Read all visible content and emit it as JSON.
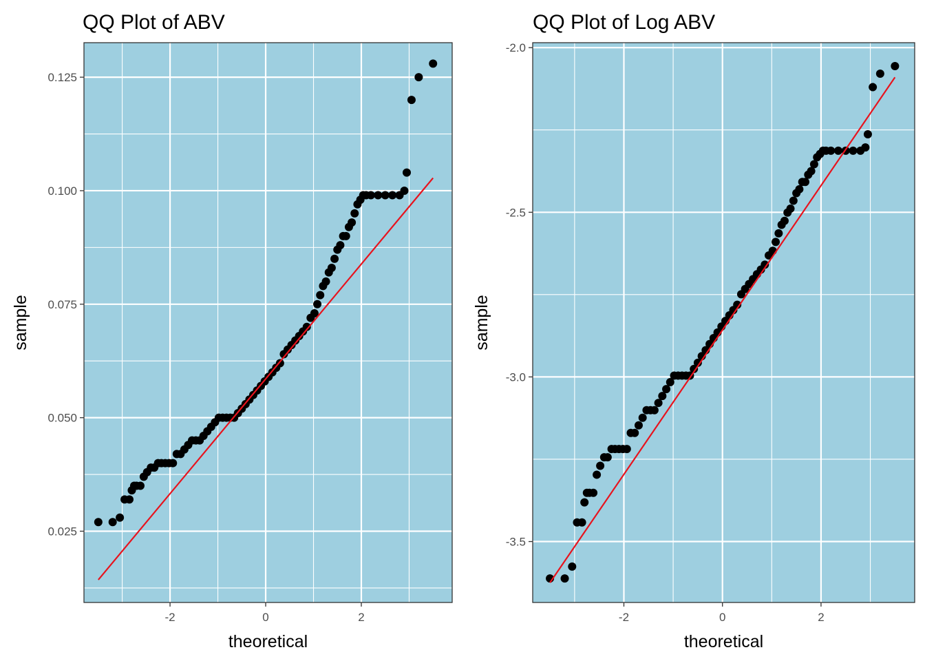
{
  "chart_data": [
    {
      "type": "scatter",
      "title": "QQ Plot of ABV",
      "xlabel": "theoretical",
      "ylabel": "sample",
      "xlim": [
        -3.8,
        3.9
      ],
      "ylim": [
        0.0093,
        0.1326
      ],
      "xticks": [
        -2,
        0,
        2
      ],
      "xtick_labels": [
        "-2",
        "0",
        "2"
      ],
      "yticks": [
        0.025,
        0.05,
        0.075,
        0.1,
        0.125
      ],
      "ytick_labels": [
        "0.025",
        "0.050",
        "0.075",
        "0.100",
        "0.125"
      ],
      "yminor": [
        0.0125,
        0.0375,
        0.0625,
        0.0875,
        0.1125
      ],
      "xminor": [
        -3,
        -1,
        1,
        3
      ],
      "grid": true,
      "background": "#9ECFE0",
      "point_color": "#000000",
      "line_color": "#E8131D",
      "series": [
        {
          "kind": "points",
          "x": [
            -3.5,
            -3.2,
            -3.05,
            -2.95,
            -2.85,
            -2.8,
            -2.75,
            -2.7,
            -2.62,
            -2.55,
            -2.48,
            -2.4,
            -2.33,
            -2.25,
            -2.18,
            -2.1,
            -2.02,
            -1.94,
            -1.86,
            -1.78,
            -1.7,
            -1.62,
            -1.54,
            -1.46,
            -1.38,
            -1.3,
            -1.22,
            -1.14,
            -1.06,
            -0.98,
            -0.9,
            -0.82,
            -0.74,
            -0.66,
            -0.58,
            -0.5,
            -0.42,
            -0.34,
            -0.26,
            -0.18,
            -0.1,
            -0.02,
            0.06,
            0.14,
            0.22,
            0.3,
            0.38,
            0.46,
            0.54,
            0.62,
            0.7,
            0.78,
            0.86,
            0.94,
            1.02,
            1.08,
            1.14,
            1.2,
            1.26,
            1.32,
            1.38,
            1.44,
            1.5,
            1.56,
            1.62,
            1.68,
            1.74,
            1.8,
            1.86,
            1.92,
            1.98,
            2.04,
            2.1,
            2.2,
            2.35,
            2.5,
            2.65,
            2.8,
            2.9,
            2.95,
            3.05,
            3.2,
            3.5
          ],
          "y": [
            0.027,
            0.027,
            0.028,
            0.032,
            0.032,
            0.034,
            0.035,
            0.035,
            0.035,
            0.037,
            0.038,
            0.039,
            0.039,
            0.04,
            0.04,
            0.04,
            0.04,
            0.04,
            0.042,
            0.042,
            0.043,
            0.044,
            0.045,
            0.045,
            0.045,
            0.046,
            0.047,
            0.048,
            0.049,
            0.05,
            0.05,
            0.05,
            0.05,
            0.05,
            0.051,
            0.052,
            0.053,
            0.054,
            0.055,
            0.056,
            0.057,
            0.058,
            0.059,
            0.06,
            0.061,
            0.062,
            0.064,
            0.065,
            0.066,
            0.067,
            0.068,
            0.069,
            0.07,
            0.072,
            0.073,
            0.075,
            0.077,
            0.079,
            0.08,
            0.082,
            0.083,
            0.085,
            0.087,
            0.088,
            0.09,
            0.09,
            0.092,
            0.093,
            0.095,
            0.097,
            0.098,
            0.099,
            0.099,
            0.099,
            0.099,
            0.099,
            0.099,
            0.099,
            0.1,
            0.104,
            0.12,
            0.125,
            0.128
          ]
        },
        {
          "kind": "line",
          "x": [
            -3.5,
            3.5
          ],
          "y": [
            0.0143,
            0.1028
          ]
        }
      ]
    },
    {
      "type": "scatter",
      "title": "QQ Plot of Log ABV",
      "xlabel": "theoretical",
      "ylabel": "sample",
      "xlim": [
        -3.85,
        3.9
      ],
      "ylim": [
        -3.685,
        -1.985
      ],
      "xticks": [
        -2,
        0,
        2
      ],
      "xtick_labels": [
        "-2",
        "0",
        "2"
      ],
      "yticks": [
        -3.5,
        -3,
        -2.5,
        -2
      ],
      "ytick_labels": [
        "-3.5",
        "-3.0",
        "-2.5",
        "-2.0"
      ],
      "yminor": [
        -3.25,
        -2.75,
        -2.25
      ],
      "xminor": [
        -3,
        -1,
        1,
        3
      ],
      "grid": true,
      "background": "#9ECFE0",
      "point_color": "#000000",
      "line_color": "#E8131D",
      "series": [
        {
          "kind": "points",
          "x": [
            -3.5,
            -3.2,
            -3.05,
            -2.95,
            -2.85,
            -2.8,
            -2.75,
            -2.7,
            -2.62,
            -2.55,
            -2.48,
            -2.4,
            -2.33,
            -2.25,
            -2.18,
            -2.1,
            -2.02,
            -1.94,
            -1.86,
            -1.78,
            -1.7,
            -1.62,
            -1.54,
            -1.46,
            -1.38,
            -1.3,
            -1.22,
            -1.14,
            -1.06,
            -0.98,
            -0.9,
            -0.82,
            -0.74,
            -0.66,
            -0.58,
            -0.5,
            -0.42,
            -0.34,
            -0.26,
            -0.18,
            -0.1,
            -0.02,
            0.06,
            0.14,
            0.22,
            0.3,
            0.38,
            0.46,
            0.54,
            0.62,
            0.7,
            0.78,
            0.86,
            0.94,
            1.02,
            1.08,
            1.14,
            1.2,
            1.26,
            1.32,
            1.38,
            1.44,
            1.5,
            1.56,
            1.62,
            1.68,
            1.74,
            1.8,
            1.86,
            1.92,
            1.98,
            2.04,
            2.1,
            2.2,
            2.35,
            2.5,
            2.65,
            2.8,
            2.9,
            2.95,
            3.05,
            3.2,
            3.5
          ],
          "y": [
            -3.612,
            -3.612,
            -3.576,
            -3.442,
            -3.442,
            -3.381,
            -3.352,
            -3.352,
            -3.352,
            -3.297,
            -3.27,
            -3.244,
            -3.244,
            -3.219,
            -3.219,
            -3.219,
            -3.219,
            -3.219,
            -3.17,
            -3.17,
            -3.147,
            -3.124,
            -3.101,
            -3.101,
            -3.101,
            -3.079,
            -3.058,
            -3.037,
            -3.016,
            -2.996,
            -2.996,
            -2.996,
            -2.996,
            -2.996,
            -2.976,
            -2.957,
            -2.937,
            -2.919,
            -2.9,
            -2.882,
            -2.865,
            -2.847,
            -2.83,
            -2.813,
            -2.797,
            -2.781,
            -2.749,
            -2.733,
            -2.718,
            -2.703,
            -2.688,
            -2.674,
            -2.659,
            -2.631,
            -2.617,
            -2.59,
            -2.564,
            -2.538,
            -2.526,
            -2.501,
            -2.489,
            -2.465,
            -2.442,
            -2.43,
            -2.408,
            -2.408,
            -2.386,
            -2.375,
            -2.354,
            -2.333,
            -2.323,
            -2.313,
            -2.313,
            -2.313,
            -2.313,
            -2.313,
            -2.313,
            -2.313,
            -2.303,
            -2.263,
            -2.12,
            -2.079,
            -2.056
          ]
        },
        {
          "kind": "line",
          "x": [
            -3.5,
            3.5
          ],
          "y": [
            -3.625,
            -2.09
          ]
        }
      ]
    }
  ]
}
